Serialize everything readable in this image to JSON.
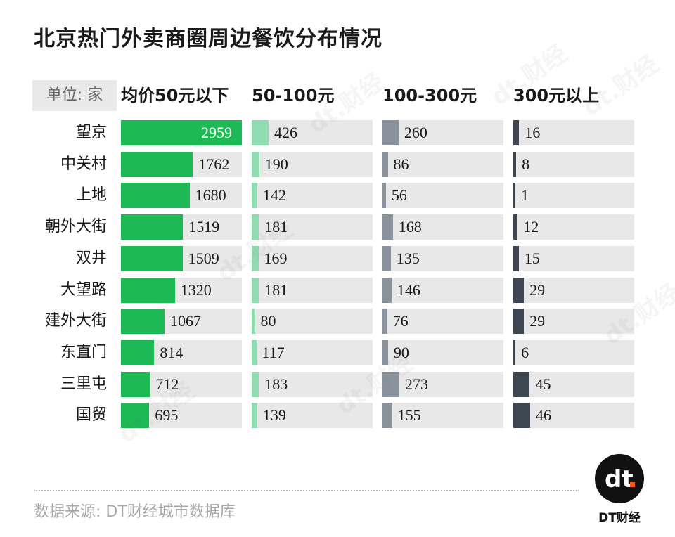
{
  "title": "北京热门外卖商圈周边餐饮分布情况",
  "unit_label": "单位: 家",
  "source": "数据来源: DT财经城市数据库",
  "brand": "DT财经",
  "logo_text": "dt",
  "watermark_text": "dt.财经",
  "colors": {
    "col0": "#1db954",
    "col1": "#8fdcb0",
    "col2": "#8a939c",
    "col3": "#3d4752",
    "cell_bg": "#e8e8e8",
    "logo_dot": "#ff5a1f"
  },
  "chart_data": {
    "type": "bar",
    "title": "北京热门外卖商圈周边餐饮分布情况",
    "categories": [
      "望京",
      "中关村",
      "上地",
      "朝外大街",
      "双井",
      "大望路",
      "建外大街",
      "东直门",
      "三里屯",
      "国贸"
    ],
    "series": [
      {
        "name": "均价50元以下",
        "values": [
          2959,
          1762,
          1680,
          1519,
          1509,
          1320,
          1067,
          814,
          712,
          695
        ]
      },
      {
        "name": "50-100元",
        "values": [
          426,
          190,
          142,
          181,
          169,
          181,
          80,
          117,
          183,
          139
        ]
      },
      {
        "name": "100-300元",
        "values": [
          260,
          86,
          56,
          168,
          135,
          146,
          76,
          90,
          273,
          155
        ]
      },
      {
        "name": "300元以上",
        "values": [
          16,
          8,
          1,
          12,
          15,
          29,
          29,
          6,
          45,
          46
        ]
      }
    ],
    "xlabel": "",
    "ylabel": "单位: 家"
  }
}
